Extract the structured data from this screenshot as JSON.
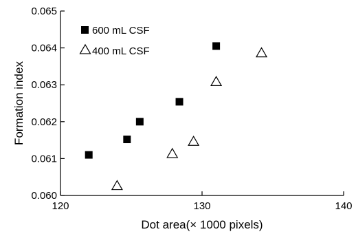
{
  "chart_data": {
    "type": "scatter",
    "title": "",
    "xlabel": "Dot area(× 1000 pixels)",
    "ylabel": "Formation index",
    "xlim": [
      120,
      140
    ],
    "ylim": [
      0.06,
      0.065
    ],
    "x_ticks": [
      120,
      130,
      140
    ],
    "x_tick_labels": [
      "120",
      "130",
      "140"
    ],
    "y_ticks": [
      0.06,
      0.061,
      0.062,
      0.063,
      0.064,
      0.065
    ],
    "y_tick_labels": [
      "0.060",
      "0.061",
      "0.062",
      "0.063",
      "0.064",
      "0.065"
    ],
    "grid": false,
    "legend_position": "top-left",
    "series": [
      {
        "name": "600 mL CSF",
        "marker": "filled-square",
        "color": "#000000",
        "points": [
          {
            "x": 122.0,
            "y": 0.0611
          },
          {
            "x": 124.7,
            "y": 0.06152
          },
          {
            "x": 125.6,
            "y": 0.062
          },
          {
            "x": 128.4,
            "y": 0.06254
          },
          {
            "x": 131.0,
            "y": 0.06405
          }
        ]
      },
      {
        "name": "400 mL CSF",
        "marker": "open-triangle",
        "color": "#000000",
        "points": [
          {
            "x": 124.0,
            "y": 0.06025
          },
          {
            "x": 127.9,
            "y": 0.06112
          },
          {
            "x": 129.4,
            "y": 0.06145
          },
          {
            "x": 131.0,
            "y": 0.06307
          },
          {
            "x": 134.2,
            "y": 0.06385
          }
        ]
      }
    ]
  }
}
